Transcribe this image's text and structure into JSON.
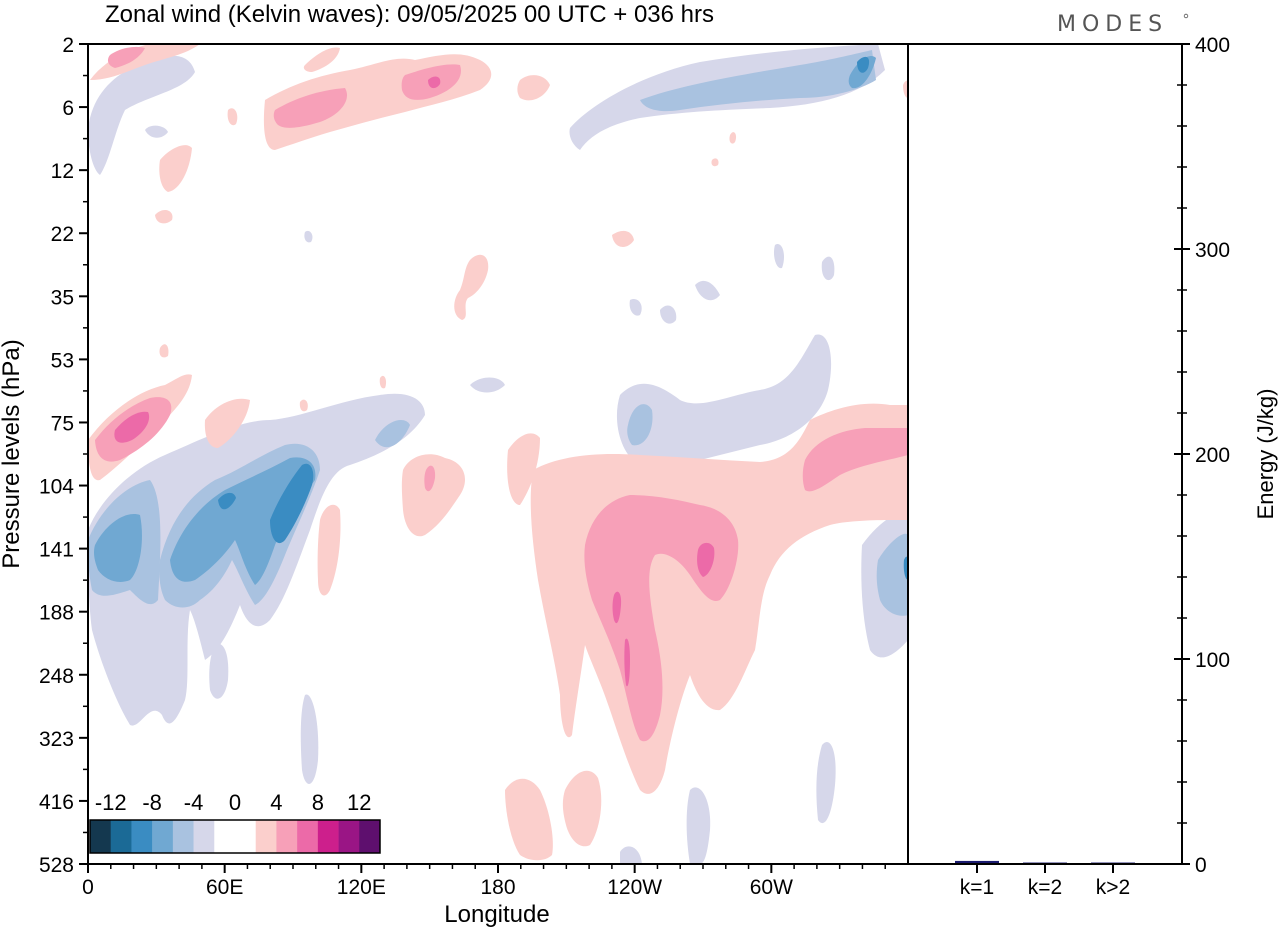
{
  "title": "Zonal wind (Kelvin waves):  09/05/2025  00 UTC  + 036 hrs",
  "logo": "MODES",
  "chart_data": [
    {
      "type": "heatmap",
      "title": "Zonal wind (Kelvin waves):  09/05/2025  00 UTC  + 036 hrs",
      "xlabel": "Longitude",
      "ylabel": "Pressure levels (hPa)",
      "x_ticks": [
        "0",
        "60E",
        "120E",
        "180",
        "120W",
        "60W"
      ],
      "x_tick_degrees": [
        0,
        60,
        120,
        180,
        240,
        300
      ],
      "xlim": [
        0,
        360
      ],
      "y_ticks": [
        "2",
        "6",
        "12",
        "22",
        "35",
        "53",
        "75",
        "104",
        "141",
        "188",
        "248",
        "323",
        "416",
        "528"
      ],
      "y_scale": "model levels (irregular, top to bottom)",
      "colorbar": {
        "labels": [
          "-12",
          "-8",
          "-4",
          "0",
          "4",
          "8",
          "12"
        ],
        "colors": [
          "#14384f",
          "#1b6a96",
          "#3a8cc2",
          "#70a8d2",
          "#a9c2e0",
          "#d6d7ea",
          "#ffffff",
          "#ffffff",
          "#fbcfcc",
          "#f7a0b8",
          "#ec6aa8",
          "#cd1f8c",
          "#9a1585",
          "#5e0f6e"
        ]
      },
      "contour_levels": [
        -8,
        -6,
        -4,
        -2,
        2,
        4,
        6,
        8
      ]
    },
    {
      "type": "bar",
      "categories": [
        "k=1",
        "k=2",
        "k>2"
      ],
      "values": [
        1.5,
        0.5,
        0.3
      ],
      "ylabel": "Energy (J/kg)",
      "ylim": [
        0,
        400
      ],
      "y_ticks": [
        "0",
        "100",
        "200",
        "300",
        "400"
      ],
      "bar_colors": [
        "#1a1a6e",
        "#2a2a7a",
        "#2a2a7a"
      ]
    }
  ]
}
